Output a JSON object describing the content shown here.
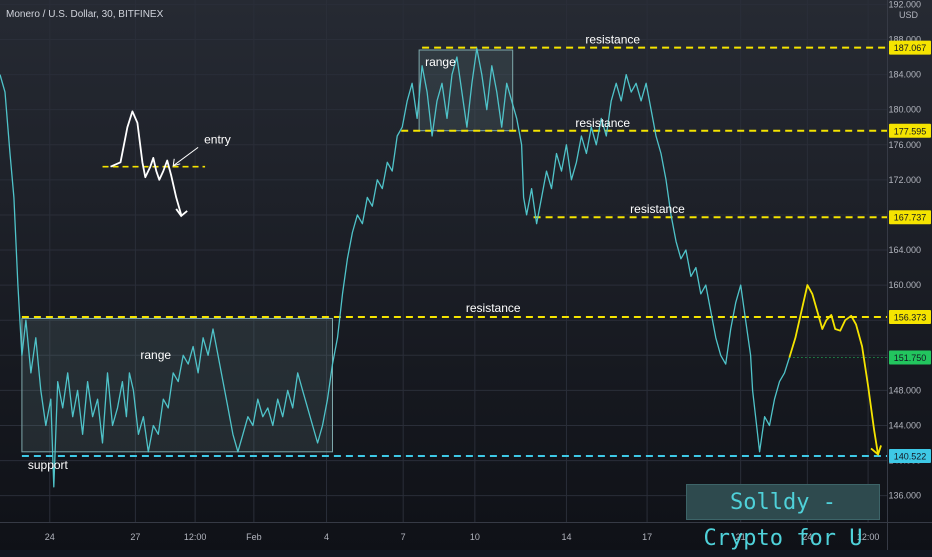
{
  "header": {
    "title": "Monero / U.S. Dollar, 30, BITFINEX"
  },
  "price_axis": {
    "currency": "USD"
  },
  "watermark": {
    "text": "Solldy - Crypto for U"
  },
  "colors": {
    "background": "#131722",
    "price_line": "#4fc3c9",
    "resistance": "#f5e400",
    "support": "#3ec9e6",
    "drawing_white": "#ffffff",
    "last_price": "#22c55e",
    "range_box": "#7ea8ab"
  },
  "chart_data": {
    "type": "line",
    "title": "Monero / U.S. Dollar, 30, BITFINEX",
    "xlabel": "",
    "ylabel": "USD",
    "ylim": [
      133.0,
      192.5
    ],
    "y_ticks": [
      136,
      140,
      144,
      148,
      152,
      156,
      160,
      164,
      168,
      172,
      176,
      180,
      184,
      188,
      192
    ],
    "y_tick_labels": [
      "136.000",
      "140.000",
      "144.000",
      "148.000",
      "152.000",
      "156.000",
      "160.000",
      "164.000",
      "168.000",
      "172.000",
      "176.000",
      "180.000",
      "184.000",
      "188.000",
      "192.000"
    ],
    "x_ticks": [
      {
        "t": 3.7,
        "label": "24"
      },
      {
        "t": 12.3,
        "label": "27"
      },
      {
        "t": 18.3,
        "label": "12:00"
      },
      {
        "t": 24.2,
        "label": "Feb"
      },
      {
        "t": 31.5,
        "label": "4"
      },
      {
        "t": 39.2,
        "label": "7"
      },
      {
        "t": 46.4,
        "label": "10"
      },
      {
        "t": 55.6,
        "label": "14"
      },
      {
        "t": 63.7,
        "label": "17"
      },
      {
        "t": 73.1,
        "label": "21"
      },
      {
        "t": 79.8,
        "label": "24"
      },
      {
        "t": 85.9,
        "label": "12:00"
      }
    ],
    "x_range": [
      -1.3,
      87.8
    ],
    "series": [
      {
        "points": [
          [
            -1.3,
            184
          ],
          [
            -0.8,
            182
          ],
          [
            -0.3,
            175
          ],
          [
            0.1,
            170
          ],
          [
            0.5,
            160
          ],
          [
            0.9,
            152
          ],
          [
            1.3,
            156
          ],
          [
            1.8,
            150
          ],
          [
            2.3,
            154
          ],
          [
            2.8,
            148
          ],
          [
            3.3,
            144
          ],
          [
            3.8,
            147
          ],
          [
            4.1,
            137
          ],
          [
            4.5,
            149
          ],
          [
            5.0,
            146
          ],
          [
            5.5,
            150
          ],
          [
            6.0,
            145
          ],
          [
            6.5,
            148
          ],
          [
            7.0,
            143
          ],
          [
            7.5,
            149
          ],
          [
            8.0,
            145
          ],
          [
            8.5,
            147
          ],
          [
            9.0,
            142
          ],
          [
            9.5,
            150
          ],
          [
            10.0,
            144
          ],
          [
            10.5,
            146
          ],
          [
            11.0,
            149
          ],
          [
            11.4,
            145
          ],
          [
            11.7,
            150
          ],
          [
            12.1,
            148
          ],
          [
            12.6,
            143
          ],
          [
            13.1,
            145
          ],
          [
            13.6,
            141
          ],
          [
            14.1,
            144
          ],
          [
            14.6,
            143
          ],
          [
            15.1,
            147
          ],
          [
            15.6,
            146
          ],
          [
            16.1,
            150
          ],
          [
            16.6,
            149
          ],
          [
            17.1,
            152
          ],
          [
            17.6,
            151
          ],
          [
            18.1,
            153
          ],
          [
            18.6,
            150
          ],
          [
            19.1,
            154
          ],
          [
            19.6,
            152
          ],
          [
            20.1,
            155
          ],
          [
            20.6,
            152
          ],
          [
            21.1,
            149
          ],
          [
            21.6,
            146
          ],
          [
            22.1,
            143
          ],
          [
            22.6,
            141
          ],
          [
            23.1,
            143
          ],
          [
            23.6,
            145
          ],
          [
            24.1,
            144
          ],
          [
            24.6,
            147
          ],
          [
            25.1,
            145
          ],
          [
            25.6,
            146
          ],
          [
            26.1,
            144
          ],
          [
            26.6,
            147
          ],
          [
            27.1,
            145
          ],
          [
            27.6,
            148
          ],
          [
            28.1,
            146
          ],
          [
            28.6,
            150
          ],
          [
            29.1,
            148
          ],
          [
            29.6,
            146
          ],
          [
            30.1,
            144
          ],
          [
            30.6,
            142
          ],
          [
            31.1,
            144
          ],
          [
            31.6,
            147
          ],
          [
            32.1,
            151
          ],
          [
            32.6,
            154
          ],
          [
            33.1,
            159
          ],
          [
            33.6,
            163
          ],
          [
            34.1,
            166
          ],
          [
            34.6,
            168
          ],
          [
            35.1,
            167
          ],
          [
            35.6,
            170
          ],
          [
            36.1,
            169
          ],
          [
            36.6,
            172
          ],
          [
            37.1,
            171
          ],
          [
            37.6,
            174
          ],
          [
            38.1,
            173
          ],
          [
            38.6,
            177
          ],
          [
            39.1,
            178
          ],
          [
            39.6,
            181
          ],
          [
            40.1,
            183
          ],
          [
            40.6,
            179
          ],
          [
            41.1,
            185
          ],
          [
            41.6,
            182
          ],
          [
            42.1,
            177
          ],
          [
            42.6,
            181
          ],
          [
            43.1,
            183
          ],
          [
            43.6,
            179
          ],
          [
            44.1,
            184
          ],
          [
            44.6,
            186
          ],
          [
            45.1,
            182
          ],
          [
            45.6,
            178
          ],
          [
            46.1,
            183
          ],
          [
            46.6,
            187
          ],
          [
            47.1,
            184
          ],
          [
            47.6,
            180
          ],
          [
            48.1,
            185
          ],
          [
            48.6,
            182
          ],
          [
            49.1,
            178
          ],
          [
            49.6,
            183
          ],
          [
            50.1,
            181
          ],
          [
            50.6,
            179
          ],
          [
            51.1,
            176
          ],
          [
            51.3,
            170
          ],
          [
            51.6,
            168
          ],
          [
            52.1,
            171
          ],
          [
            52.6,
            167
          ],
          [
            53.1,
            170
          ],
          [
            53.6,
            173
          ],
          [
            54.1,
            171
          ],
          [
            54.6,
            175
          ],
          [
            55.1,
            173
          ],
          [
            55.6,
            176
          ],
          [
            56.1,
            172
          ],
          [
            56.6,
            174
          ],
          [
            57.1,
            177
          ],
          [
            57.6,
            175
          ],
          [
            58.1,
            178
          ],
          [
            58.6,
            176
          ],
          [
            59.1,
            179
          ],
          [
            59.6,
            177
          ],
          [
            60.1,
            181
          ],
          [
            60.6,
            183
          ],
          [
            61.1,
            181
          ],
          [
            61.6,
            184
          ],
          [
            62.1,
            182
          ],
          [
            62.6,
            183
          ],
          [
            63.1,
            181
          ],
          [
            63.6,
            183
          ],
          [
            64.1,
            180
          ],
          [
            64.6,
            177
          ],
          [
            65.1,
            175
          ],
          [
            65.6,
            172
          ],
          [
            66.1,
            168
          ],
          [
            66.6,
            165
          ],
          [
            67.1,
            163
          ],
          [
            67.6,
            164
          ],
          [
            68.1,
            161
          ],
          [
            68.6,
            162
          ],
          [
            69.1,
            159
          ],
          [
            69.6,
            160
          ],
          [
            70.1,
            157
          ],
          [
            70.6,
            154
          ],
          [
            71.1,
            152
          ],
          [
            71.6,
            151
          ],
          [
            72.1,
            155
          ],
          [
            72.6,
            158
          ],
          [
            73.1,
            160
          ],
          [
            73.6,
            156
          ],
          [
            74.1,
            152
          ],
          [
            74.3,
            148
          ],
          [
            74.6,
            145
          ],
          [
            75.0,
            141
          ],
          [
            75.5,
            145
          ],
          [
            76.0,
            144
          ],
          [
            76.5,
            147
          ],
          [
            77.0,
            149
          ],
          [
            77.5,
            150
          ],
          [
            78.0,
            151.75
          ]
        ]
      }
    ],
    "levels": [
      {
        "kind": "resistance",
        "value": 187.067,
        "label": "resistance",
        "price_label": "187.067",
        "x_start": 41.1
      },
      {
        "kind": "resistance",
        "value": 177.595,
        "label": "resistance",
        "price_label": "177.595",
        "x_start": 39.0
      },
      {
        "kind": "resistance",
        "value": 167.737,
        "label": "resistance",
        "price_label": "167.737",
        "x_start": 52.3
      },
      {
        "kind": "resistance",
        "value": 156.373,
        "label": "resistance",
        "price_label": "156.373",
        "x_start": 0.9
      },
      {
        "kind": "support",
        "value": 140.522,
        "label": "support",
        "price_label": "140.522",
        "x_start": 0.9
      }
    ],
    "last_price": {
      "value": 151.75,
      "label": "151.750"
    },
    "range_boxes": [
      {
        "label": "range",
        "x0": 0.9,
        "x1": 32.1,
        "y0": 141.0,
        "y1": 156.2
      },
      {
        "label": "range",
        "x0": 40.8,
        "x1": 50.2,
        "y0": 177.6,
        "y1": 186.8
      }
    ],
    "annotations": {
      "entry_label": "entry",
      "white_sketch": {
        "curve": [
          [
            9.8,
            173.5
          ],
          [
            10.8,
            174
          ],
          [
            11.5,
            178
          ],
          [
            12.0,
            179.8
          ],
          [
            12.5,
            178.5
          ],
          [
            13.0,
            174
          ],
          [
            13.3,
            172.3
          ],
          [
            13.8,
            173.5
          ],
          [
            14.1,
            174.5
          ],
          [
            14.4,
            173
          ],
          [
            14.7,
            172
          ],
          [
            15.1,
            173
          ],
          [
            15.5,
            174.2
          ],
          [
            15.9,
            172.5
          ],
          [
            16.4,
            170
          ],
          [
            16.9,
            168
          ]
        ],
        "level": 173.5,
        "level_x": [
          9.0,
          19.3
        ],
        "arrow_from": [
          18.6,
          175.7
        ],
        "arrow_to": [
          16.1,
          173.6
        ]
      },
      "yellow_projection": {
        "curve": [
          [
            78.0,
            151.75
          ],
          [
            78.6,
            154
          ],
          [
            79.2,
            157
          ],
          [
            79.8,
            160.0
          ],
          [
            80.3,
            159
          ],
          [
            80.8,
            157
          ],
          [
            81.3,
            155
          ],
          [
            81.7,
            156
          ],
          [
            82.2,
            156.6
          ],
          [
            82.6,
            155
          ],
          [
            83.1,
            154.8
          ],
          [
            83.6,
            156
          ],
          [
            84.2,
            156.5
          ],
          [
            84.7,
            155.5
          ],
          [
            85.3,
            153
          ],
          [
            85.9,
            148.5
          ],
          [
            86.5,
            143.5
          ],
          [
            86.9,
            140.7
          ]
        ]
      }
    }
  }
}
